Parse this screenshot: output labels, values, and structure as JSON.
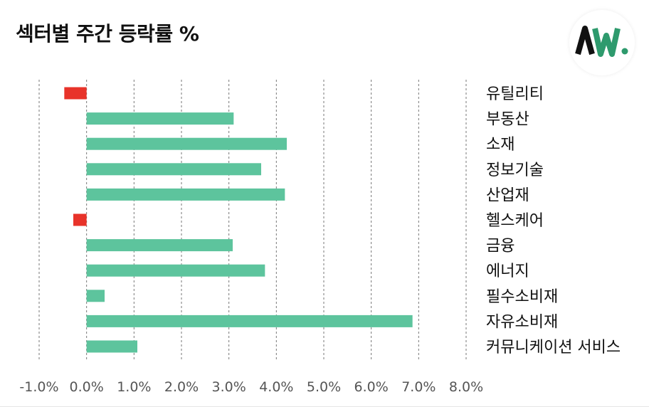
{
  "title": "섹터별 주간 등락률 %",
  "logo": {
    "icon": "aw-logo-icon",
    "text": "AW."
  },
  "colors": {
    "positive": "#5dc49d",
    "negative": "#e8332a",
    "grid": "#777777",
    "tick": "#555555",
    "label": "#111111"
  },
  "chart_data": {
    "type": "bar",
    "orientation": "horizontal",
    "title": "섹터별 주간 등락률 %",
    "categories": [
      "유틸리티",
      "부동산",
      "소재",
      "정보기술",
      "산업재",
      "헬스케어",
      "금융",
      "에너지",
      "필수소비재",
      "자유소비재",
      "커뮤니케이션 서비스"
    ],
    "values": [
      -0.47,
      3.1,
      4.22,
      3.68,
      4.18,
      -0.28,
      3.08,
      3.76,
      0.38,
      6.87,
      1.07
    ],
    "xlim": [
      -1.0,
      8.0
    ],
    "xticks": [
      "-1.0%",
      "0.0%",
      "1.0%",
      "2.0%",
      "3.0%",
      "4.0%",
      "5.0%",
      "6.0%",
      "7.0%",
      "8.0%"
    ],
    "grid": "vertical dashed",
    "legend": "none"
  }
}
